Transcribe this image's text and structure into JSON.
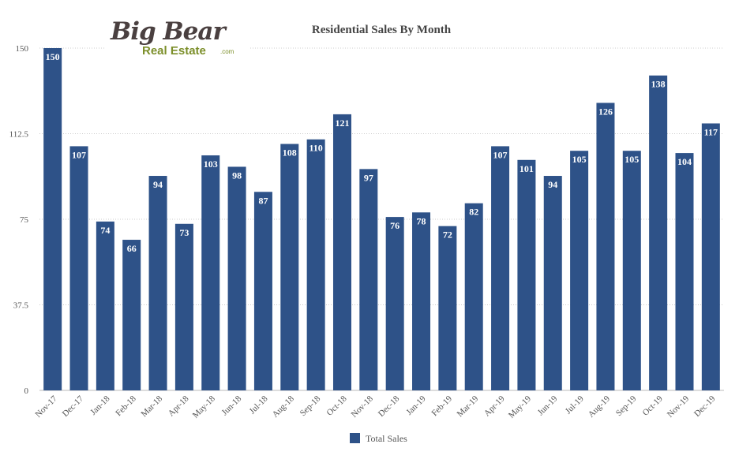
{
  "logo": {
    "line1": "Big Bear",
    "line2": "Real Estate",
    "suffix": ".com"
  },
  "chart_data": {
    "type": "bar",
    "title": "Residential Sales By Month",
    "xlabel": "",
    "ylabel": "",
    "ylim": [
      0,
      150
    ],
    "yticks": [
      0,
      37.5,
      75,
      112.5,
      150
    ],
    "yticks_labels": [
      "0",
      "37.5",
      "75",
      "112.5",
      "150"
    ],
    "grid": true,
    "legend_position": "bottom-center",
    "categories": [
      "Nov-17",
      "Dec-17",
      "Jan-18",
      "Feb-18",
      "Mar-18",
      "Apr-18",
      "May-18",
      "Jun-18",
      "Jul-18",
      "Aug-18",
      "Sep-18",
      "Oct-18",
      "Nov-18",
      "Dec-18",
      "Jan-19",
      "Feb-19",
      "Mar-19",
      "Apr-19",
      "May-19",
      "Jun-19",
      "Jul-19",
      "Aug-19",
      "Sep-19",
      "Oct-19",
      "Nov-19",
      "Dec-19"
    ],
    "series": [
      {
        "name": "Total Sales",
        "color": "#2e5288",
        "values": [
          150,
          107,
          74,
          66,
          94,
          73,
          103,
          98,
          87,
          108,
          110,
          121,
          97,
          76,
          78,
          72,
          82,
          107,
          101,
          94,
          105,
          126,
          105,
          138,
          104,
          117
        ]
      }
    ]
  }
}
